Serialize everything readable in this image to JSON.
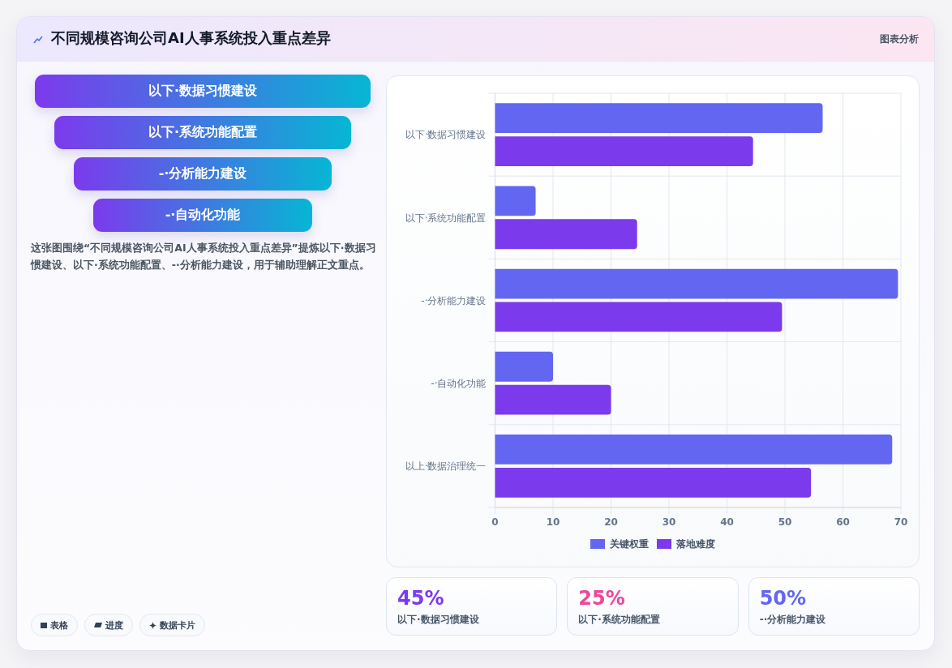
{
  "chart_data": [
    {
      "type": "other",
      "title": "不同规模咨询公司AI人事系统投入重点差异",
      "annotations": [
        "图表分析"
      ]
    },
    {
      "type": "other",
      "categories": [
        "以下·数据习惯建设",
        "以下·系统功能配置",
        "-·分析能力建设",
        "-·自动化功能"
      ],
      "annotations": [
        "这张图围绕“不同规模咨询公司AI人事系统投入重点差异”提炼以下·数据习惯建设、以下·系统功能配置、-·分析能力建设，用于辅助理解正文重点。",
        "表格",
        "进度",
        "数据卡片"
      ]
    },
    {
      "type": "bar",
      "orientation": "horizontal",
      "categories": [
        "以下·数据习惯建设",
        "以下·系统功能配置",
        "-·分析能力建设",
        "-·自动化功能",
        "以上·数据治理统一"
      ],
      "series": [
        {
          "name": "关键权重",
          "color": "#6366f1",
          "values": [
            56.5,
            7,
            69.5,
            10,
            68.5
          ]
        },
        {
          "name": "落地难度",
          "color": "#7c3aed",
          "values": [
            44.5,
            24.5,
            49.5,
            20,
            54.5
          ]
        }
      ],
      "xlim": [
        0,
        70
      ],
      "xticks": [
        0,
        10,
        20,
        30,
        40,
        50,
        60,
        70
      ],
      "grid": true,
      "legend": "bottom"
    },
    {
      "type": "other",
      "categories": [
        "以下·数据习惯建设",
        "以下·系统功能配置",
        "-·分析能力建设"
      ],
      "annotations": [
        "45%",
        "25%",
        "50%"
      ]
    }
  ]
}
